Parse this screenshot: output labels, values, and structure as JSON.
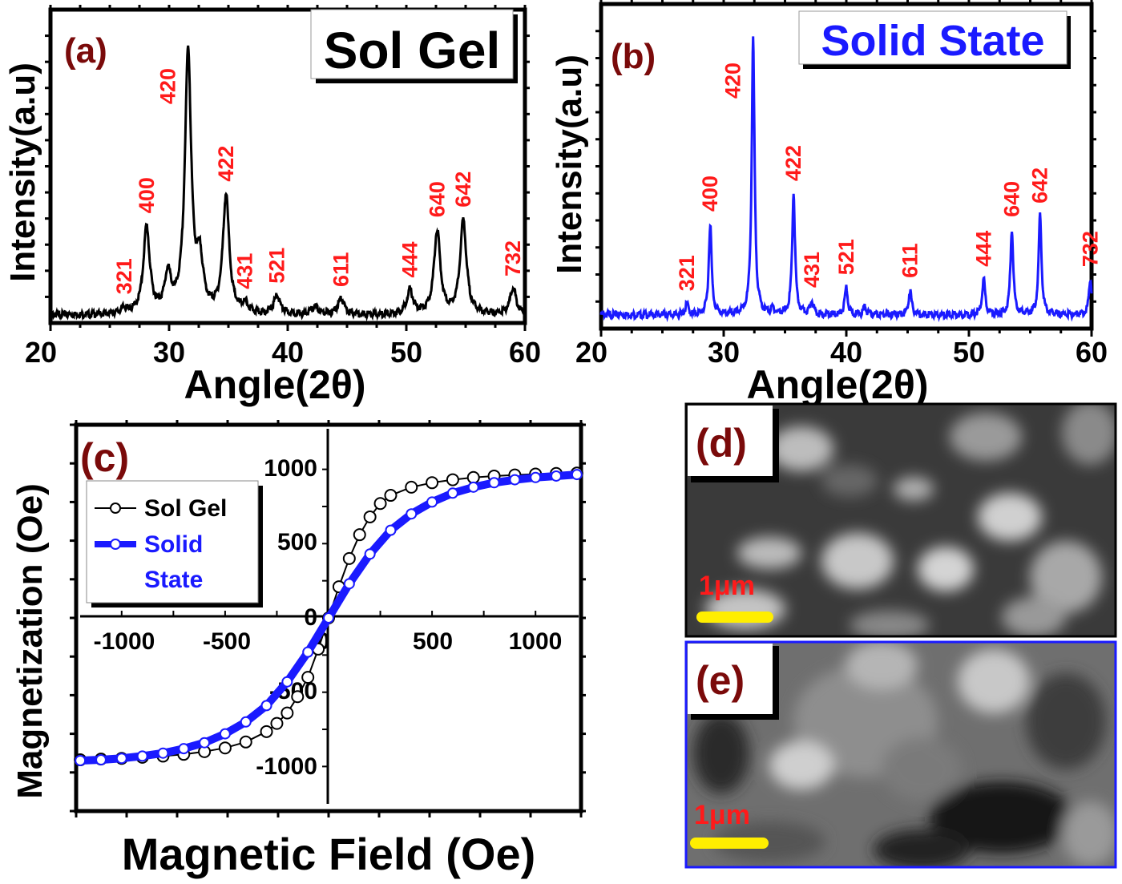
{
  "chart_data": [
    {
      "panel": "(a)",
      "type": "line",
      "legend": "Sol Gel",
      "xlabel": "Angle(2θ)",
      "ylabel": "Intensity(a.u)",
      "xlim": [
        20,
        60
      ],
      "xticks": [
        "20",
        "30",
        "40",
        "50",
        "60"
      ],
      "ylim": [
        -0.03,
        1.17
      ],
      "color": "#000000",
      "peak_width_deg": 0.32,
      "peaks": [
        {
          "angle": 26.2,
          "intensity": 0.02
        },
        {
          "angle": 28.1,
          "intensity": 0.33
        },
        {
          "angle": 29.9,
          "intensity": 0.14
        },
        {
          "angle": 31.6,
          "intensity": 1.0
        },
        {
          "angle": 32.6,
          "intensity": 0.18
        },
        {
          "angle": 34.8,
          "intensity": 0.45
        },
        {
          "angle": 36.4,
          "intensity": 0.03
        },
        {
          "angle": 39.1,
          "intensity": 0.07
        },
        {
          "angle": 42.3,
          "intensity": 0.03
        },
        {
          "angle": 44.5,
          "intensity": 0.06
        },
        {
          "angle": 50.3,
          "intensity": 0.09
        },
        {
          "angle": 52.6,
          "intensity": 0.32
        },
        {
          "angle": 54.8,
          "intensity": 0.36
        },
        {
          "angle": 59.0,
          "intensity": 0.1
        }
      ],
      "hkl_labels": [
        {
          "text": "321",
          "angle": 26.2
        },
        {
          "text": "400",
          "angle": 28.1
        },
        {
          "text": "420",
          "angle": 31.6
        },
        {
          "text": "422",
          "angle": 34.8
        },
        {
          "text": "431",
          "angle": 36.4
        },
        {
          "text": "521",
          "angle": 39.1
        },
        {
          "text": "611",
          "angle": 44.5
        },
        {
          "text": "444",
          "angle": 50.3
        },
        {
          "text": "640",
          "angle": 52.6
        },
        {
          "text": "642",
          "angle": 54.8
        },
        {
          "text": "732",
          "angle": 59.0
        }
      ]
    },
    {
      "panel": "(b)",
      "type": "line",
      "legend": "Solid State",
      "xlabel": "Angle(2θ)",
      "ylabel": "Intensity(a.u)",
      "xlim": [
        20,
        60
      ],
      "xticks": [
        "20",
        "30",
        "40",
        "50",
        "60"
      ],
      "ylim": [
        -0.05,
        1.13
      ],
      "color": "#1a1aff",
      "peak_width_deg": 0.14,
      "peaks": [
        {
          "angle": 27.0,
          "intensity": 0.04
        },
        {
          "angle": 28.9,
          "intensity": 0.33
        },
        {
          "angle": 32.4,
          "intensity": 1.0
        },
        {
          "angle": 34.0,
          "intensity": 0.02
        },
        {
          "angle": 35.7,
          "intensity": 0.44
        },
        {
          "angle": 37.2,
          "intensity": 0.05
        },
        {
          "angle": 40.0,
          "intensity": 0.1
        },
        {
          "angle": 41.5,
          "intensity": 0.03
        },
        {
          "angle": 45.2,
          "intensity": 0.09
        },
        {
          "angle": 51.2,
          "intensity": 0.13
        },
        {
          "angle": 53.5,
          "intensity": 0.31
        },
        {
          "angle": 55.8,
          "intensity": 0.36
        },
        {
          "angle": 59.9,
          "intensity": 0.13
        }
      ],
      "hkl_labels": [
        {
          "text": "321",
          "angle": 27.0
        },
        {
          "text": "400",
          "angle": 28.9
        },
        {
          "text": "420",
          "angle": 32.4
        },
        {
          "text": "422",
          "angle": 35.7
        },
        {
          "text": "431",
          "angle": 37.2
        },
        {
          "text": "521",
          "angle": 40.0
        },
        {
          "text": "611",
          "angle": 45.2
        },
        {
          "text": "444",
          "angle": 51.2
        },
        {
          "text": "640",
          "angle": 53.5
        },
        {
          "text": "642",
          "angle": 55.8
        },
        {
          "text": "732",
          "angle": 59.9
        }
      ]
    },
    {
      "panel": "(c)",
      "type": "line",
      "xlabel": "Magnetic Field (Oe)",
      "ylabel": "Magnetization (Oe)",
      "xlim": [
        -1220,
        1220
      ],
      "ylim": [
        -1300,
        1300
      ],
      "xticks": [
        "-1000",
        "-500",
        "0",
        "500",
        "1000"
      ],
      "yticks": [
        "1000",
        "500",
        "0",
        "-500",
        "-1000"
      ],
      "legend_position": "top-left",
      "series": [
        {
          "name": "Sol Gel",
          "color": "#000000",
          "x": [
            -1200,
            -1100,
            -1000,
            -900,
            -800,
            -700,
            -600,
            -500,
            -400,
            -300,
            -250,
            -200,
            -150,
            -100,
            -50,
            0,
            50,
            100,
            150,
            200,
            250,
            300,
            400,
            500,
            600,
            700,
            800,
            900,
            1000,
            1100,
            1200
          ],
          "y": [
            -955,
            -950,
            -945,
            -938,
            -930,
            -918,
            -900,
            -875,
            -835,
            -765,
            -710,
            -640,
            -530,
            -400,
            -210,
            0,
            210,
            400,
            560,
            680,
            770,
            825,
            880,
            910,
            930,
            945,
            955,
            962,
            968,
            972,
            975
          ]
        },
        {
          "name": "Solid State",
          "color": "#1a1aff",
          "x": [
            -1200,
            -1100,
            -1000,
            -900,
            -800,
            -700,
            -600,
            -500,
            -400,
            -300,
            -200,
            -100,
            0,
            100,
            200,
            300,
            400,
            500,
            600,
            700,
            800,
            900,
            1000,
            1100,
            1200
          ],
          "y": [
            -960,
            -955,
            -945,
            -930,
            -910,
            -880,
            -840,
            -780,
            -700,
            -590,
            -430,
            -230,
            0,
            230,
            430,
            590,
            700,
            780,
            840,
            880,
            910,
            930,
            945,
            955,
            965
          ]
        }
      ]
    }
  ],
  "images": [
    {
      "panel": "(d)",
      "scale_bar": "1μm",
      "border_color": "#000000"
    },
    {
      "panel": "(e)",
      "scale_bar": "1μm",
      "border_color": "#1a1aff"
    }
  ],
  "colors": {
    "panel_label": "#7a0a0a",
    "hkl": "#ff1a1a",
    "scale_bar": "#ffee00"
  }
}
